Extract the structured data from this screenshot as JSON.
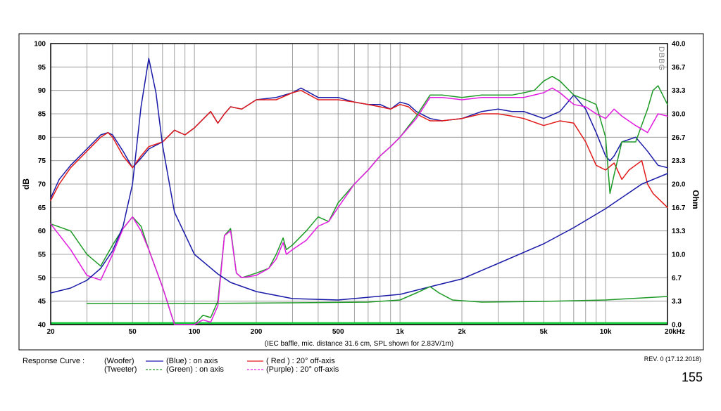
{
  "chart_data": {
    "type": "line",
    "x_scale": "log",
    "xlim": [
      20,
      20000
    ],
    "ylim_left": [
      40,
      100
    ],
    "ylim_right": [
      0.0,
      40.0
    ],
    "ylabel_left": "dB",
    "ylabel_right": "Ohm",
    "x_ticks": [
      {
        "value": 20,
        "label": "20"
      },
      {
        "value": 50,
        "label": "50"
      },
      {
        "value": 100,
        "label": "100"
      },
      {
        "value": 200,
        "label": "200"
      },
      {
        "value": 500,
        "label": "500"
      },
      {
        "value": 1000,
        "label": "1k"
      },
      {
        "value": 2000,
        "label": "2k"
      },
      {
        "value": 5000,
        "label": "5k"
      },
      {
        "value": 10000,
        "label": "10k"
      },
      {
        "value": 20000,
        "label": "20kHz"
      }
    ],
    "y_ticks_left": [
      "100",
      "95",
      "90",
      "85",
      "80",
      "75",
      "70",
      "65",
      "60",
      "55",
      "50",
      "45",
      "40"
    ],
    "y_ticks_right": [
      "40.0",
      "36.7",
      "33.3",
      "30.0",
      "26.7",
      "23.3",
      "20.0",
      "16.7",
      "13.3",
      "10.0",
      "6.7",
      "3.3",
      "0.0"
    ],
    "grid": true,
    "note": "(IEC baffle, mic. distance 31.6 cm, SPL shown for 2.83V/1m)",
    "watermark": "DBBG",
    "series": [
      {
        "name": "(Woofer) (Blue) : on axis",
        "color": "#1a1aa8",
        "axis": "left",
        "points": [
          [
            20,
            67
          ],
          [
            22,
            71
          ],
          [
            25,
            74
          ],
          [
            30,
            77.5
          ],
          [
            35,
            80.5
          ],
          [
            38,
            81
          ],
          [
            40,
            80.5
          ],
          [
            45,
            77
          ],
          [
            50,
            73.5
          ],
          [
            55,
            75.5
          ],
          [
            60,
            77.5
          ],
          [
            70,
            79
          ],
          [
            80,
            81.5
          ],
          [
            90,
            80.5
          ],
          [
            100,
            82
          ],
          [
            120,
            85.5
          ],
          [
            130,
            83
          ],
          [
            140,
            85
          ],
          [
            150,
            86.5
          ],
          [
            170,
            86
          ],
          [
            200,
            88
          ],
          [
            250,
            88.5
          ],
          [
            300,
            89.5
          ],
          [
            330,
            90.5
          ],
          [
            400,
            88.5
          ],
          [
            500,
            88.5
          ],
          [
            600,
            87.5
          ],
          [
            700,
            87
          ],
          [
            800,
            87
          ],
          [
            900,
            86
          ],
          [
            1000,
            87.5
          ],
          [
            1100,
            87
          ],
          [
            1200,
            85.5
          ],
          [
            1400,
            84
          ],
          [
            1600,
            83.5
          ],
          [
            2000,
            84
          ],
          [
            2500,
            85.5
          ],
          [
            3000,
            86
          ],
          [
            3500,
            85.5
          ],
          [
            4000,
            85.5
          ],
          [
            5000,
            84
          ],
          [
            6000,
            85.5
          ],
          [
            7000,
            89
          ],
          [
            8000,
            86
          ],
          [
            9000,
            81
          ],
          [
            10000,
            76
          ],
          [
            10500,
            75
          ],
          [
            11000,
            76
          ],
          [
            12000,
            79
          ],
          [
            14000,
            80
          ],
          [
            16000,
            77
          ],
          [
            18000,
            74
          ],
          [
            20000,
            73.5
          ]
        ]
      },
      {
        "name": "( Red ) : 20° off-axis",
        "color": "#e21b1b",
        "axis": "left",
        "points": [
          [
            20,
            66.5
          ],
          [
            22,
            70
          ],
          [
            25,
            73.5
          ],
          [
            30,
            77
          ],
          [
            35,
            80
          ],
          [
            38,
            81
          ],
          [
            40,
            80
          ],
          [
            45,
            76
          ],
          [
            50,
            73.5
          ],
          [
            55,
            76
          ],
          [
            60,
            78
          ],
          [
            70,
            79
          ],
          [
            80,
            81.5
          ],
          [
            90,
            80.5
          ],
          [
            100,
            82
          ],
          [
            120,
            85.5
          ],
          [
            130,
            83
          ],
          [
            140,
            85
          ],
          [
            150,
            86.5
          ],
          [
            170,
            86
          ],
          [
            200,
            88
          ],
          [
            250,
            88
          ],
          [
            300,
            89.5
          ],
          [
            330,
            90
          ],
          [
            400,
            88
          ],
          [
            500,
            88
          ],
          [
            600,
            87.5
          ],
          [
            700,
            87
          ],
          [
            800,
            86.5
          ],
          [
            900,
            86
          ],
          [
            1000,
            87
          ],
          [
            1100,
            86.5
          ],
          [
            1200,
            85
          ],
          [
            1400,
            83.5
          ],
          [
            1600,
            83.5
          ],
          [
            2000,
            84
          ],
          [
            2500,
            85
          ],
          [
            3000,
            85
          ],
          [
            3500,
            84.5
          ],
          [
            4000,
            84
          ],
          [
            5000,
            82.5
          ],
          [
            6000,
            83.5
          ],
          [
            7000,
            83
          ],
          [
            8000,
            79
          ],
          [
            9000,
            74
          ],
          [
            10000,
            73
          ],
          [
            11000,
            74.5
          ],
          [
            12000,
            71
          ],
          [
            13000,
            73
          ],
          [
            15000,
            75
          ],
          [
            16000,
            70
          ],
          [
            17000,
            68
          ],
          [
            20000,
            65
          ]
        ]
      },
      {
        "name": "(Tweeter) (Green) : on axis",
        "color": "#1d9a26",
        "axis": "left",
        "points": [
          [
            20,
            61.5
          ],
          [
            25,
            60
          ],
          [
            30,
            55
          ],
          [
            35,
            52.5
          ],
          [
            40,
            57
          ],
          [
            45,
            60.5
          ],
          [
            50,
            63
          ],
          [
            55,
            61
          ],
          [
            60,
            56
          ],
          [
            70,
            48
          ],
          [
            80,
            40
          ],
          [
            100,
            40
          ],
          [
            110,
            42
          ],
          [
            120,
            41.5
          ],
          [
            130,
            45
          ],
          [
            140,
            59
          ],
          [
            150,
            60.5
          ],
          [
            160,
            51
          ],
          [
            170,
            50
          ],
          [
            200,
            51
          ],
          [
            230,
            52
          ],
          [
            250,
            55
          ],
          [
            270,
            58.5
          ],
          [
            280,
            56
          ],
          [
            300,
            57
          ],
          [
            350,
            60
          ],
          [
            400,
            63
          ],
          [
            450,
            62
          ],
          [
            500,
            66
          ],
          [
            600,
            70
          ],
          [
            700,
            73
          ],
          [
            800,
            76
          ],
          [
            900,
            78
          ],
          [
            1000,
            80
          ],
          [
            1200,
            84.5
          ],
          [
            1400,
            89
          ],
          [
            1600,
            89
          ],
          [
            2000,
            88.5
          ],
          [
            2500,
            89
          ],
          [
            3000,
            89
          ],
          [
            3500,
            89
          ],
          [
            4000,
            89.5
          ],
          [
            4500,
            90
          ],
          [
            5000,
            92
          ],
          [
            5500,
            93
          ],
          [
            6000,
            92
          ],
          [
            7000,
            89
          ],
          [
            8000,
            88
          ],
          [
            9000,
            87
          ],
          [
            10000,
            80
          ],
          [
            10500,
            68
          ],
          [
            11000,
            72
          ],
          [
            12000,
            79
          ],
          [
            14000,
            79
          ],
          [
            16000,
            86
          ],
          [
            17000,
            90
          ],
          [
            18000,
            91
          ],
          [
            20000,
            87
          ]
        ]
      },
      {
        "name": "(Purple) : 20° off-axis",
        "color": "#e21be0",
        "axis": "left",
        "points": [
          [
            20,
            61.5
          ],
          [
            25,
            56
          ],
          [
            30,
            50.5
          ],
          [
            35,
            49.5
          ],
          [
            40,
            55
          ],
          [
            45,
            60.5
          ],
          [
            50,
            63
          ],
          [
            55,
            60
          ],
          [
            60,
            56
          ],
          [
            70,
            48
          ],
          [
            80,
            40
          ],
          [
            100,
            40
          ],
          [
            110,
            41
          ],
          [
            120,
            40.5
          ],
          [
            130,
            44
          ],
          [
            140,
            59
          ],
          [
            150,
            60
          ],
          [
            160,
            51
          ],
          [
            170,
            50
          ],
          [
            200,
            50.5
          ],
          [
            230,
            52
          ],
          [
            250,
            54
          ],
          [
            270,
            57.5
          ],
          [
            280,
            55
          ],
          [
            300,
            56
          ],
          [
            350,
            58
          ],
          [
            400,
            61
          ],
          [
            450,
            62
          ],
          [
            500,
            65
          ],
          [
            600,
            70
          ],
          [
            700,
            73
          ],
          [
            800,
            76
          ],
          [
            900,
            78
          ],
          [
            1000,
            80
          ],
          [
            1200,
            84
          ],
          [
            1400,
            88.5
          ],
          [
            1600,
            88.5
          ],
          [
            2000,
            88
          ],
          [
            2500,
            88.5
          ],
          [
            3000,
            88.5
          ],
          [
            3500,
            88.5
          ],
          [
            4000,
            88.5
          ],
          [
            5000,
            89.5
          ],
          [
            5500,
            90.5
          ],
          [
            6000,
            89.5
          ],
          [
            7000,
            87
          ],
          [
            8000,
            86.5
          ],
          [
            9000,
            85
          ],
          [
            10000,
            84
          ],
          [
            11000,
            86
          ],
          [
            12000,
            84.5
          ],
          [
            14000,
            82.5
          ],
          [
            16000,
            81
          ],
          [
            18000,
            85
          ],
          [
            20000,
            84.5
          ]
        ]
      },
      {
        "name": "Woofer impedance",
        "color": "#1a1aa8",
        "axis": "right",
        "points": [
          [
            20,
            4.5
          ],
          [
            25,
            5.2
          ],
          [
            30,
            6.3
          ],
          [
            35,
            8
          ],
          [
            40,
            10.5
          ],
          [
            45,
            14
          ],
          [
            50,
            20
          ],
          [
            55,
            31
          ],
          [
            60,
            37.9
          ],
          [
            65,
            33
          ],
          [
            70,
            25.5
          ],
          [
            80,
            16
          ],
          [
            100,
            10
          ],
          [
            130,
            7.2
          ],
          [
            150,
            6
          ],
          [
            200,
            4.7
          ],
          [
            300,
            3.7
          ],
          [
            500,
            3.5
          ],
          [
            1000,
            4.3
          ],
          [
            1500,
            5.6
          ],
          [
            2000,
            6.5
          ],
          [
            3000,
            8.7
          ],
          [
            5000,
            11.5
          ],
          [
            7000,
            13.8
          ],
          [
            10000,
            16.5
          ],
          [
            15000,
            20
          ],
          [
            20000,
            21.5
          ]
        ]
      },
      {
        "name": "Tweeter impedance",
        "color": "#1d9a26",
        "axis": "right",
        "points": [
          [
            30,
            3
          ],
          [
            100,
            3
          ],
          [
            300,
            3.1
          ],
          [
            700,
            3.2
          ],
          [
            1000,
            3.5
          ],
          [
            1200,
            4.5
          ],
          [
            1400,
            5.4
          ],
          [
            1550,
            4.5
          ],
          [
            1800,
            3.5
          ],
          [
            2500,
            3.2
          ],
          [
            5000,
            3.3
          ],
          [
            10000,
            3.5
          ],
          [
            20000,
            4
          ]
        ]
      }
    ]
  },
  "legend": {
    "title": "Response Curve :",
    "rows": [
      {
        "driver": "(Woofer)",
        "swatch_color": "#1a1aa8",
        "label": "(Blue) : on axis",
        "swatch2_color": "#e21b1b",
        "label2": "( Red ) : 20° off-axis"
      },
      {
        "driver": "(Tweeter)",
        "swatch_color": "#1d9a26",
        "label": "(Green) : on axis",
        "swatch2_color": "#e21be0",
        "label2": "(Purple) : 20° off-axis"
      }
    ]
  },
  "revision": "REV. 0 (17.12.2018)",
  "page_number": "155"
}
